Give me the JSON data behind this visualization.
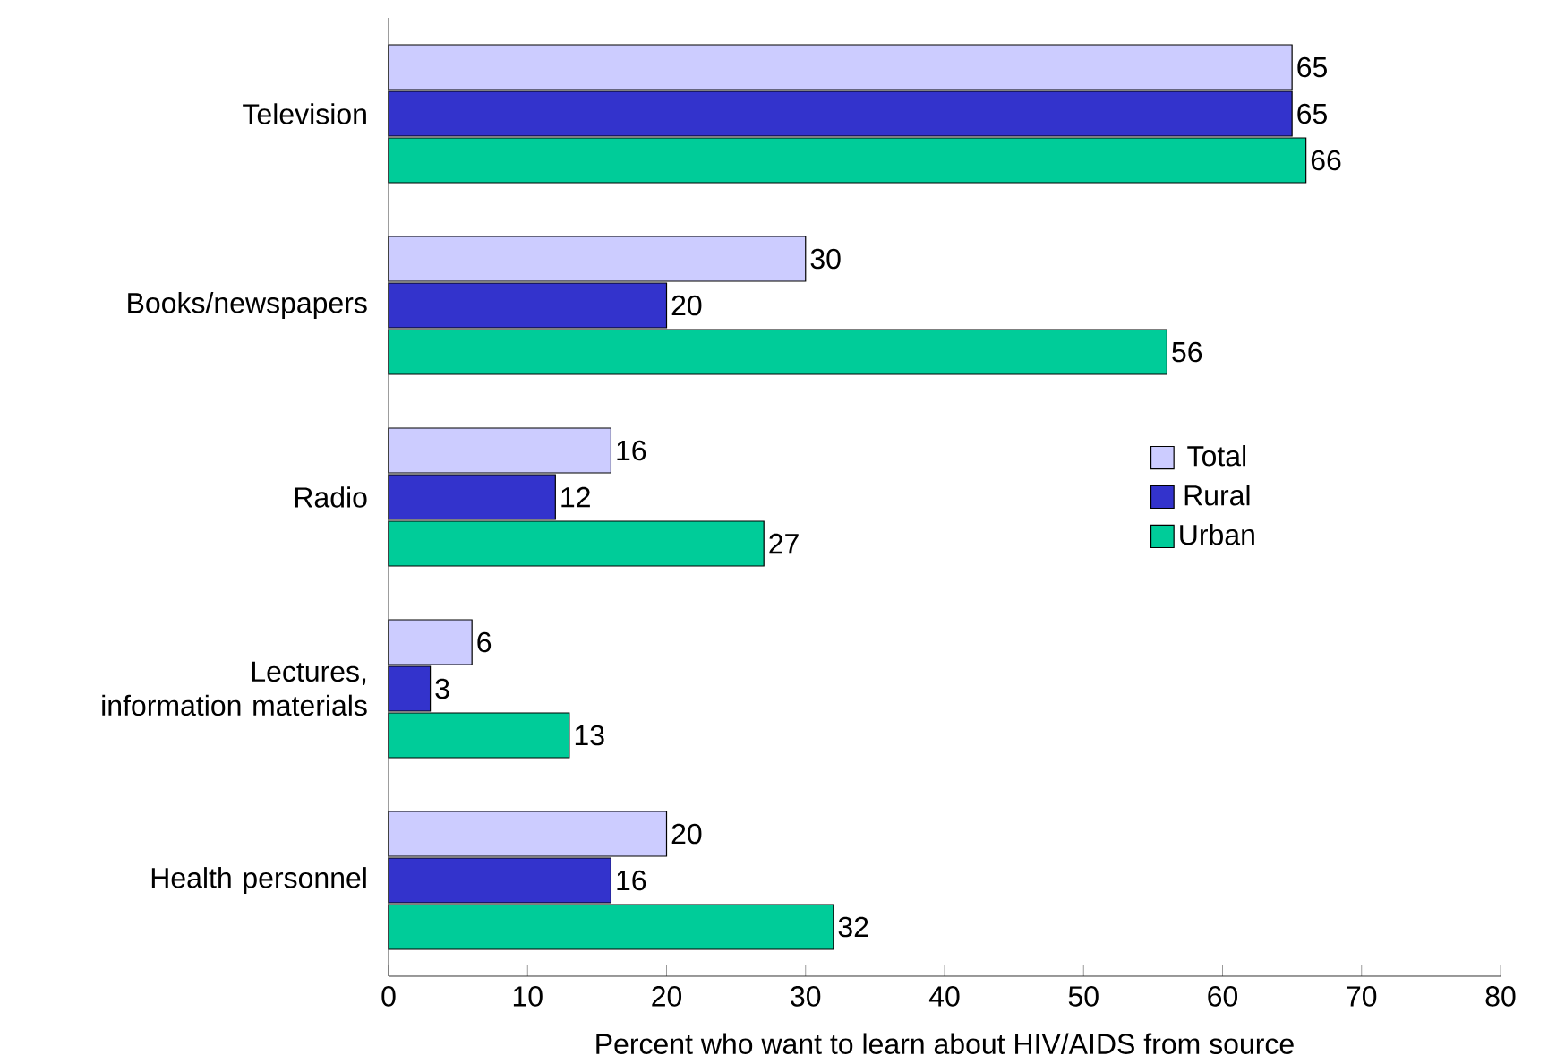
{
  "chart_data": {
    "type": "bar",
    "orientation": "horizontal",
    "xlabel": "Percent who want to learn about HIV/AIDS from source",
    "categories": [
      "Television",
      "Books/newspapers",
      "Radio",
      "Lectures, information materials",
      "Health personnel"
    ],
    "series": [
      {
        "name": "Total",
        "color": "#ccccff",
        "values": [
          65,
          30,
          16,
          6,
          20
        ]
      },
      {
        "name": "Rural",
        "color": "#3333cc",
        "values": [
          65,
          20,
          12,
          3,
          16
        ]
      },
      {
        "name": "Urban",
        "color": "#00cc99",
        "values": [
          66,
          56,
          27,
          13,
          32
        ]
      }
    ],
    "xlim": [
      0,
      80
    ],
    "xticks": [
      0,
      10,
      20,
      30,
      40,
      50,
      60,
      70,
      80
    ],
    "data_labels": true,
    "legend": "right",
    "grid": false
  }
}
